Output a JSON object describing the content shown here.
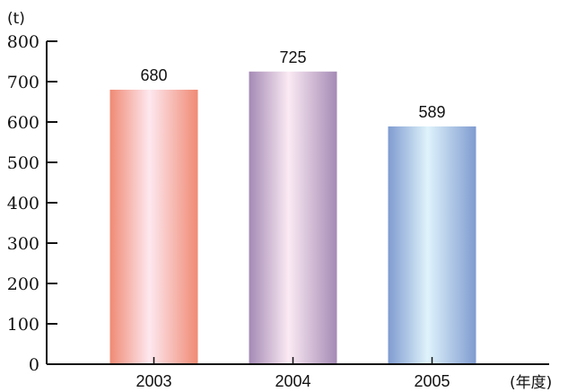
{
  "chart_data": {
    "type": "bar",
    "categories": [
      "2003",
      "2004",
      "2005"
    ],
    "values": [
      680,
      725,
      589
    ],
    "data_labels": [
      "680",
      "725",
      "589"
    ],
    "ylim": [
      0,
      800
    ],
    "yticks": [
      "0",
      "100",
      "200",
      "300",
      "400",
      "500",
      "600",
      "700",
      "800"
    ],
    "y_unit": "(t)",
    "x_unit": "(年度)",
    "grid": false,
    "legend": "none",
    "bar_colors": [
      {
        "edge": "#f08a74",
        "center": "#fde8ef"
      },
      {
        "edge": "#a48ab5",
        "center": "#fbeaf3"
      },
      {
        "edge": "#7f9bd0",
        "center": "#dff3fb"
      }
    ]
  }
}
